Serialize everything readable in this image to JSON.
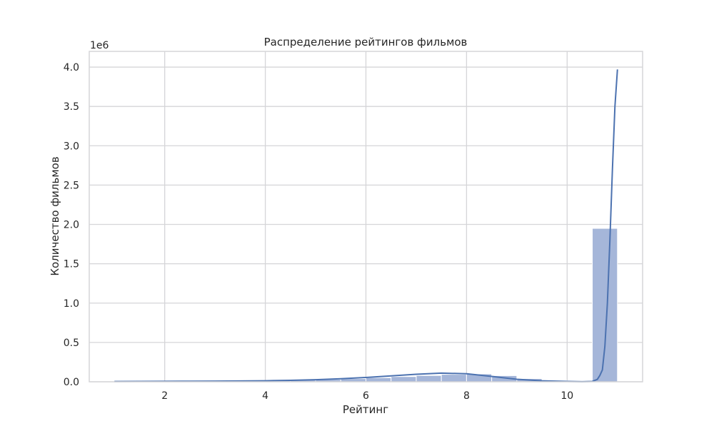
{
  "chart_data": {
    "type": "bar",
    "title": "Распределение рейтингов фильмов",
    "xlabel": "Рейтинг",
    "ylabel": "Количество фильмов",
    "y_scale_label": "1e6",
    "xlim": [
      0.5,
      11.5
    ],
    "ylim": [
      0,
      4.2
    ],
    "grid": true,
    "x_ticks": [
      2,
      4,
      6,
      8,
      10
    ],
    "y_ticks": [
      0.0,
      0.5,
      1.0,
      1.5,
      2.0,
      2.5,
      3.0,
      3.5,
      4.0
    ],
    "x_tick_labels": [
      "2",
      "4",
      "6",
      "8",
      "10"
    ],
    "y_tick_labels": [
      "0.0",
      "0.5",
      "1.0",
      "1.5",
      "2.0",
      "2.5",
      "3.0",
      "3.5",
      "4.0"
    ],
    "bin_edges": [
      1.0,
      1.5,
      2.0,
      2.5,
      3.0,
      3.5,
      4.0,
      4.5,
      5.0,
      5.5,
      6.0,
      6.5,
      7.0,
      7.5,
      8.0,
      8.5,
      9.0,
      9.5,
      10.0,
      10.5,
      11.0
    ],
    "values": [
      0.004,
      0.004,
      0.005,
      0.007,
      0.009,
      0.012,
      0.016,
      0.022,
      0.03,
      0.04,
      0.052,
      0.066,
      0.08,
      0.094,
      0.1,
      0.078,
      0.04,
      0.015,
      0.005,
      1.95
    ],
    "kde": {
      "x": [
        1.0,
        1.5,
        2.0,
        2.5,
        3.0,
        3.5,
        4.0,
        4.5,
        5.0,
        5.5,
        6.0,
        6.5,
        7.0,
        7.5,
        8.0,
        8.5,
        9.0,
        9.5,
        10.0,
        10.3,
        10.5,
        10.6,
        10.65,
        10.7,
        10.75,
        10.8,
        10.85,
        10.9,
        10.95,
        11.0
      ],
      "y": [
        0.003,
        0.005,
        0.006,
        0.007,
        0.008,
        0.01,
        0.013,
        0.018,
        0.026,
        0.038,
        0.055,
        0.075,
        0.095,
        0.11,
        0.102,
        0.068,
        0.032,
        0.012,
        0.004,
        0.001,
        0.005,
        0.03,
        0.08,
        0.15,
        0.45,
        1.0,
        1.8,
        2.7,
        3.5,
        3.97
      ]
    },
    "colors": {
      "bar_fill": "#a5b6d9",
      "bar_stroke": "#ffffff",
      "line": "#4c72b0",
      "grid": "#d5d5d8",
      "axes_border": "#d5d5d8",
      "text": "#262626"
    }
  }
}
